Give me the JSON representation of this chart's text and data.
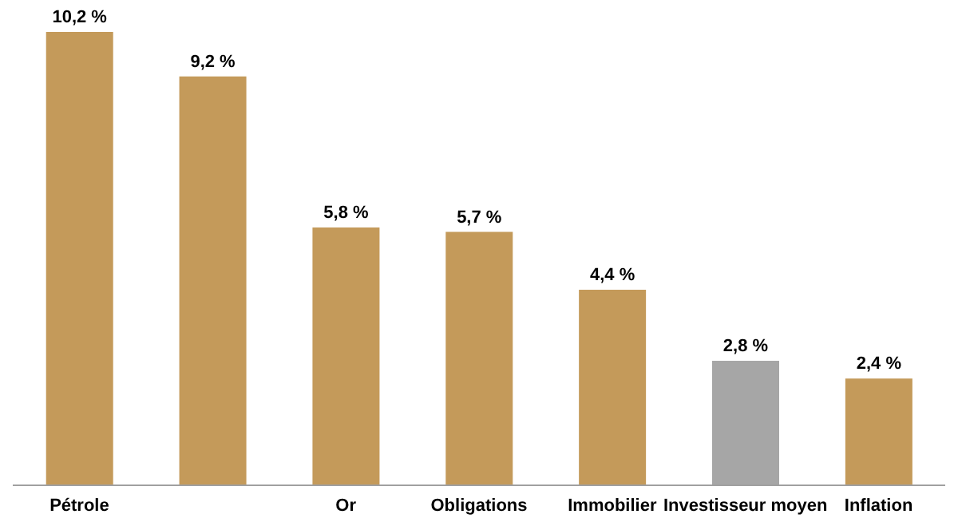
{
  "chart_data": {
    "type": "bar",
    "categories": [
      "Pétrole",
      null,
      "Or",
      "Obligations",
      "Immobilier",
      "Investisseur moyen",
      "Inflation"
    ],
    "values": [
      10.2,
      9.2,
      5.8,
      5.7,
      4.4,
      2.8,
      2.4
    ],
    "value_labels": [
      "10,2 %",
      "9,2 %",
      "5,8 %",
      "5,7 %",
      "4,4 %",
      "2,8 %",
      "2,4 %"
    ],
    "colors": [
      "#c49a5a",
      "#c49a5a",
      "#c49a5a",
      "#c49a5a",
      "#c49a5a",
      "#a6a6a6",
      "#c49a5a"
    ],
    "grid": false,
    "legend": false
  }
}
